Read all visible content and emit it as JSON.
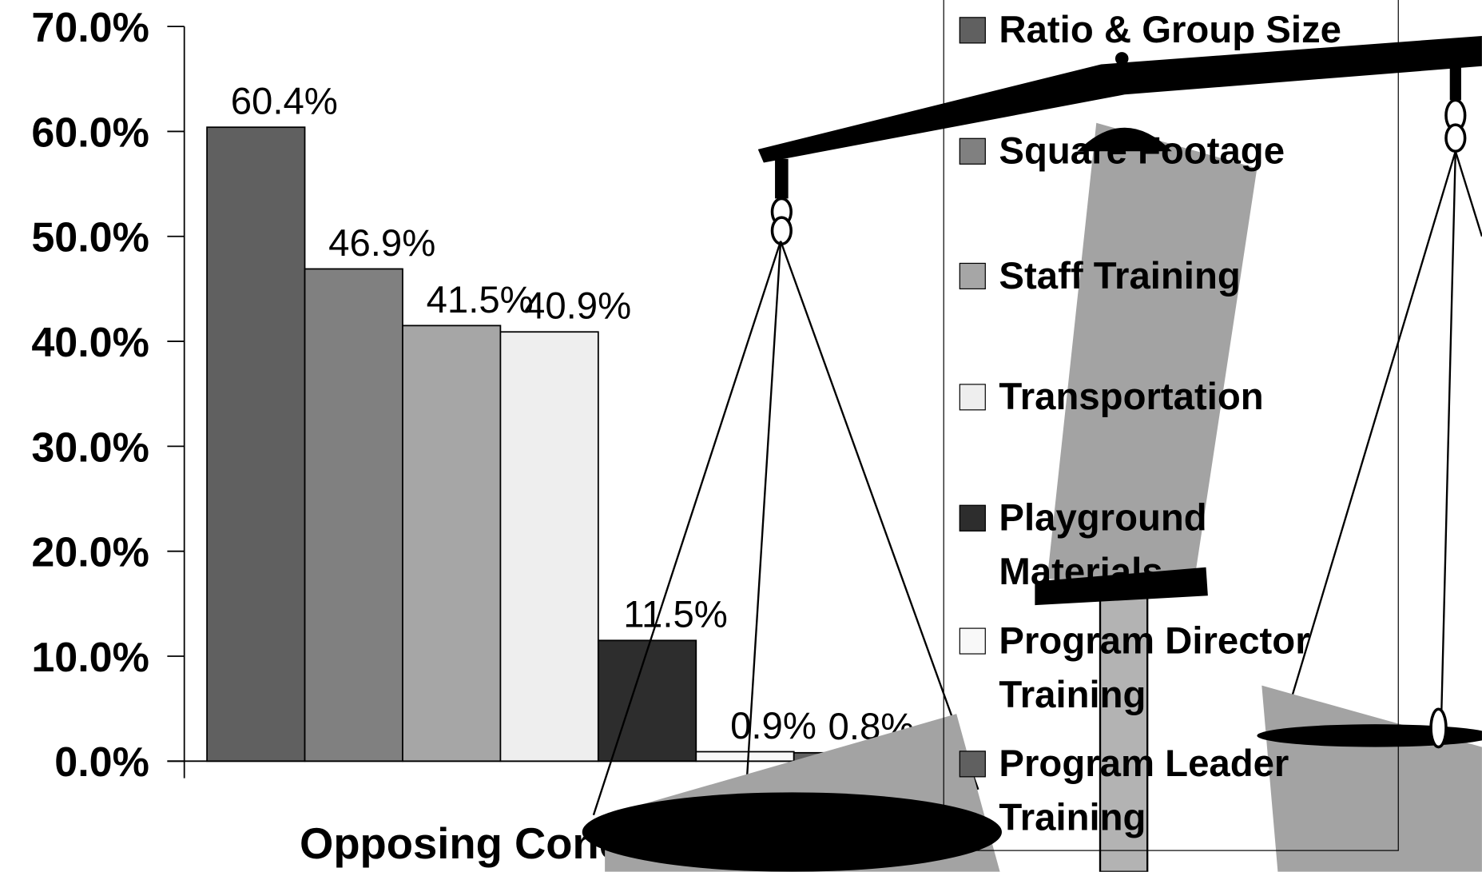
{
  "chart_data": {
    "type": "bar",
    "x_label": "Opposing Concerns",
    "ylim": [
      0,
      70
    ],
    "yticks": [
      {
        "value": 0,
        "label": "0.0%"
      },
      {
        "value": 10,
        "label": "10.0%"
      },
      {
        "value": 20,
        "label": "20.0%"
      },
      {
        "value": 30,
        "label": "30.0%"
      },
      {
        "value": 40,
        "label": "40.0%"
      },
      {
        "value": 50,
        "label": "50.0%"
      },
      {
        "value": 60,
        "label": "60.0%"
      },
      {
        "value": 70,
        "label": "70.0%"
      }
    ],
    "series": [
      {
        "name": "Ratio & Group Size",
        "color": "#606060",
        "values": [
          60.4
        ],
        "value_labels": [
          "60.4%"
        ]
      },
      {
        "name": "Square Footage",
        "color": "#808080",
        "values": [
          46.9
        ],
        "value_labels": [
          "46.9%"
        ]
      },
      {
        "name": "Staff Training",
        "color": "#a6a6a6",
        "values": [
          41.5
        ],
        "value_labels": [
          "41.5%"
        ]
      },
      {
        "name": "Transportation",
        "color": "#eeeeee",
        "values": [
          40.9
        ],
        "value_labels": [
          "40.9%"
        ]
      },
      {
        "name": "Playground Materials",
        "color": "#2d2d2d",
        "values": [
          11.5
        ],
        "value_labels": [
          "11.5%"
        ]
      },
      {
        "name": "Program Director Training",
        "color": "#f8f8f8",
        "values": [
          0.9
        ],
        "value_labels": [
          "0.9%"
        ]
      },
      {
        "name": "Program Leader Training",
        "color": "#606060",
        "values": [
          0.8
        ],
        "value_labels": [
          "0.8%"
        ]
      }
    ]
  }
}
